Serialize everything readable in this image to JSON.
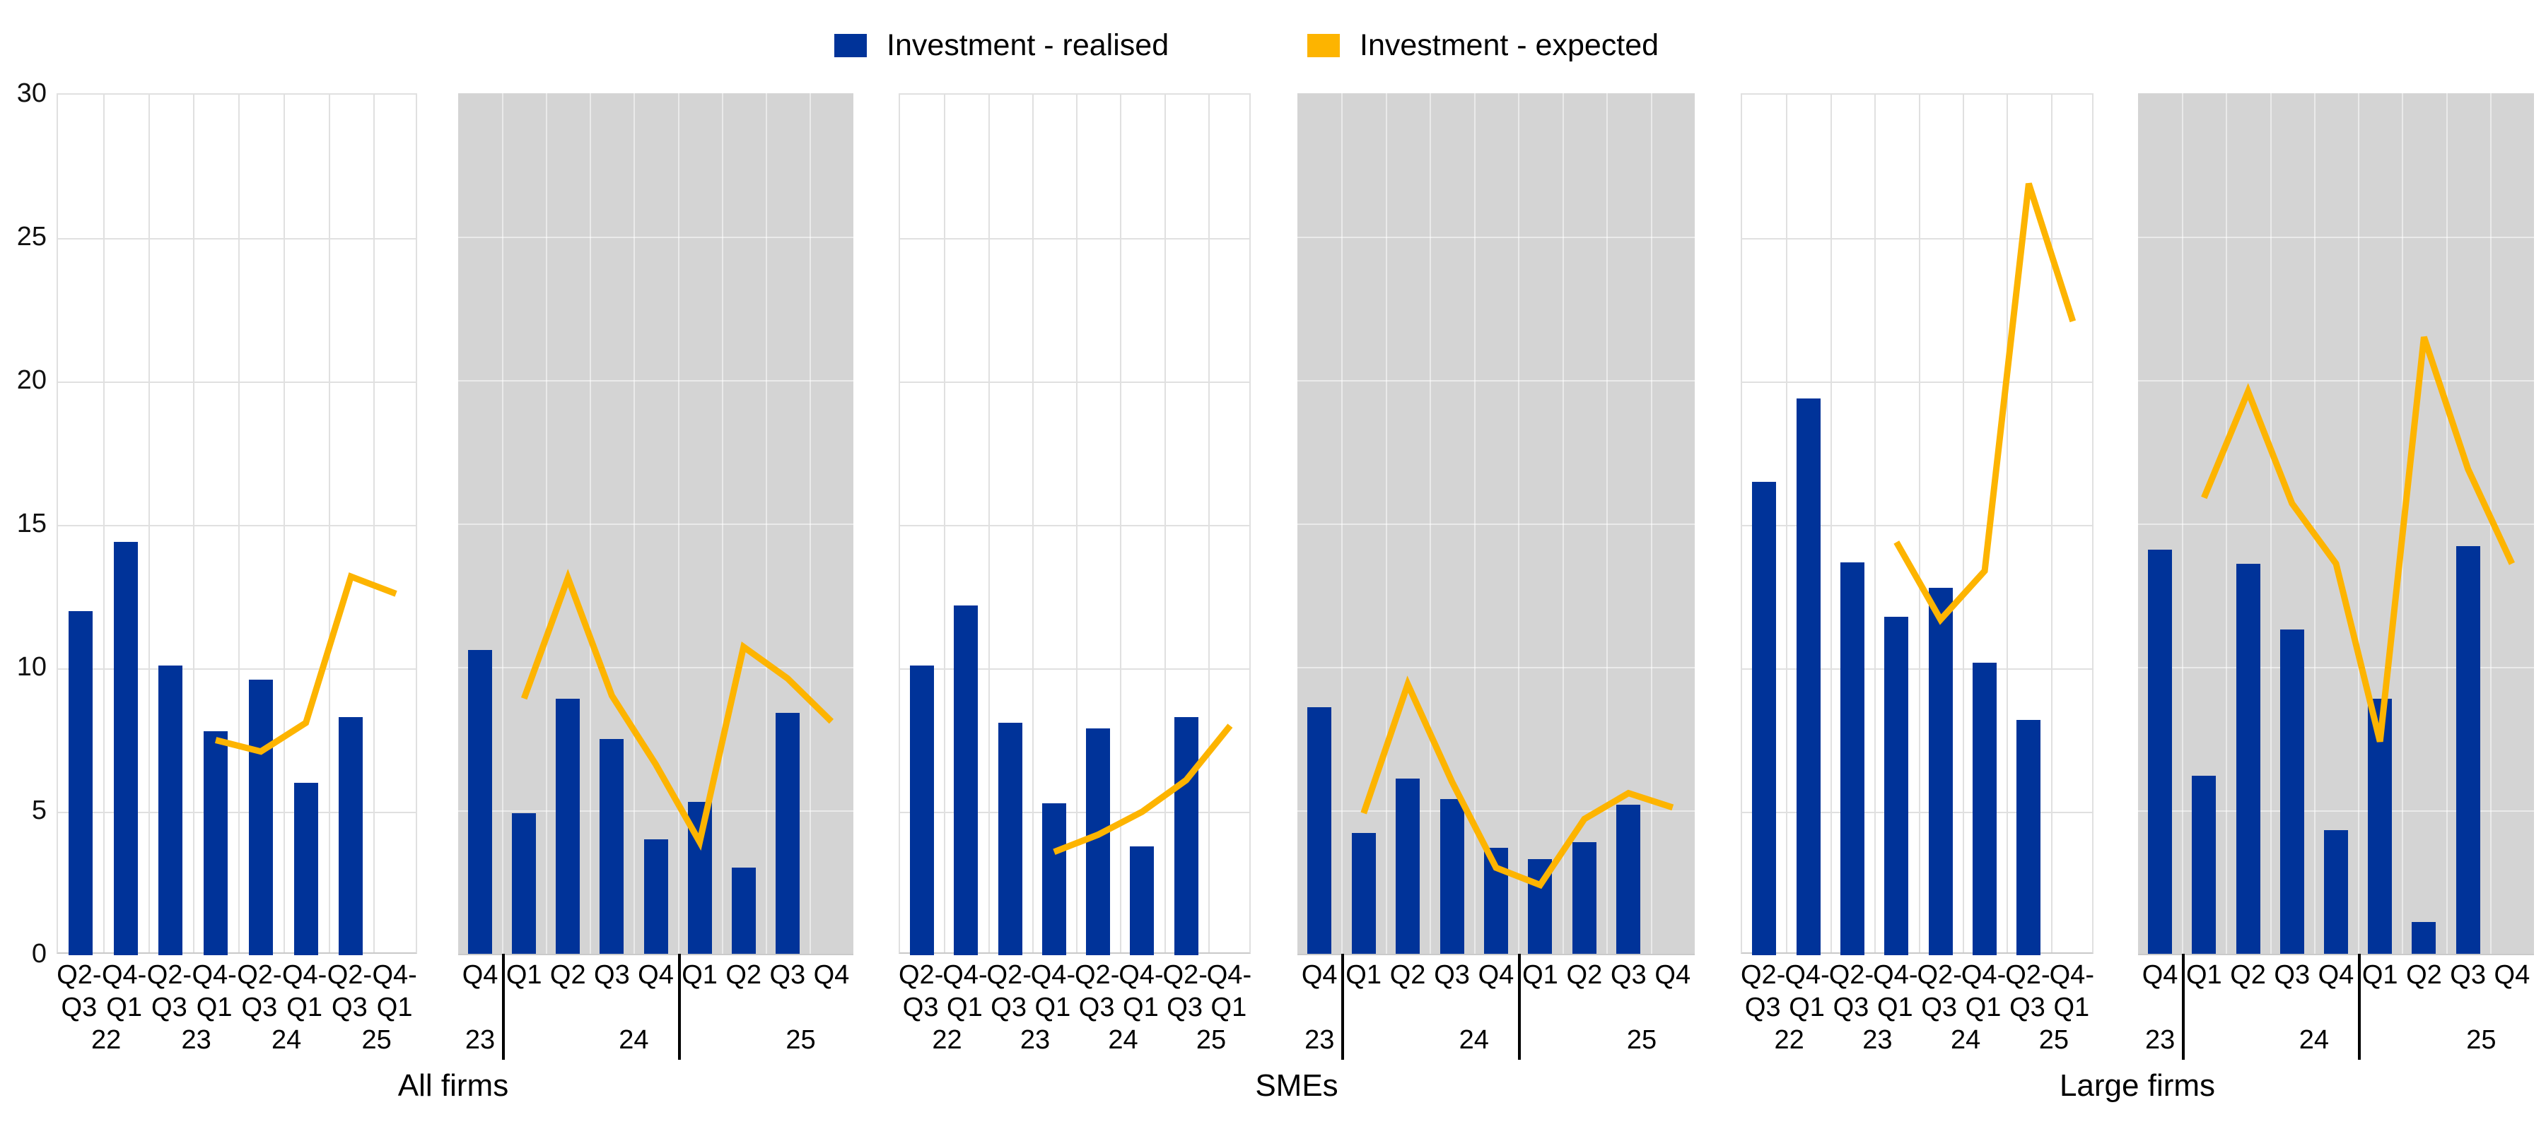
{
  "legend": {
    "items": [
      {
        "label": "Investment - realised",
        "color": "#003399"
      },
      {
        "label": "Investment - expected",
        "color": "#FDB400"
      }
    ]
  },
  "y_axis": {
    "min": 0,
    "max": 30,
    "ticks": [
      30,
      25,
      20,
      15,
      10,
      5,
      0
    ]
  },
  "group_labels": [
    "All firms",
    "SMEs",
    "Large firms"
  ],
  "colors": {
    "bar": "#003399",
    "line": "#FDB400",
    "panel_gray": "#D4D4D4",
    "grid_on_white": "#E0E0E0",
    "grid_on_gray": "rgba(255,255,255,0.5)",
    "axis_line": "#C9C9C9"
  },
  "chart_data": [
    {
      "id": "all-firms-semiannual",
      "group": "All firms",
      "type": "bar",
      "background": "white",
      "slots": 8,
      "x_labels_line1": [
        "Q2-",
        "Q4-",
        "Q2-",
        "Q4-",
        "Q2-",
        "Q4-",
        "Q2-",
        "Q4-"
      ],
      "x_labels_line2": [
        "Q3",
        "Q1",
        "Q3",
        "Q1",
        "Q3",
        "Q1",
        "Q3",
        "Q1"
      ],
      "years": [
        {
          "label": "22",
          "slot": 0.6
        },
        {
          "label": "23",
          "slot": 2.6
        },
        {
          "label": "24",
          "slot": 4.6
        },
        {
          "label": "25",
          "slot": 6.6
        }
      ],
      "separators": [],
      "series": {
        "realised": [
          12.0,
          14.4,
          10.1,
          7.8,
          9.6,
          6.0,
          8.3,
          null
        ],
        "expected": [
          null,
          null,
          null,
          7.5,
          7.1,
          8.1,
          13.2,
          12.6
        ]
      }
    },
    {
      "id": "all-firms-quarterly",
      "group": "All firms",
      "type": "bar",
      "background": "gray",
      "slots": 9,
      "x_labels_line1": [
        "Q4",
        "Q1",
        "Q2",
        "Q3",
        "Q4",
        "Q1",
        "Q2",
        "Q3",
        "Q4"
      ],
      "x_labels_line2": [],
      "years": [
        {
          "label": "23",
          "slot": 0
        },
        {
          "label": "24",
          "slot": 3.5
        },
        {
          "label": "25",
          "slot": 7.3
        }
      ],
      "separators": [
        1,
        5
      ],
      "series": {
        "realised": [
          10.6,
          4.9,
          8.9,
          7.5,
          4.0,
          5.3,
          3.0,
          8.4,
          null
        ],
        "expected": [
          null,
          8.9,
          13.1,
          9.0,
          6.6,
          3.9,
          10.7,
          9.6,
          8.1
        ]
      }
    },
    {
      "id": "smes-semiannual",
      "group": "SMEs",
      "type": "bar",
      "background": "white",
      "slots": 8,
      "x_labels_line1": [
        "Q2-",
        "Q4-",
        "Q2-",
        "Q4-",
        "Q2-",
        "Q4-",
        "Q2-",
        "Q4-"
      ],
      "x_labels_line2": [
        "Q3",
        "Q1",
        "Q3",
        "Q1",
        "Q3",
        "Q1",
        "Q3",
        "Q1"
      ],
      "years": [
        {
          "label": "22",
          "slot": 0.6
        },
        {
          "label": "23",
          "slot": 2.6
        },
        {
          "label": "24",
          "slot": 4.6
        },
        {
          "label": "25",
          "slot": 6.6
        }
      ],
      "separators": [],
      "series": {
        "realised": [
          10.1,
          12.2,
          8.1,
          5.3,
          7.9,
          3.8,
          8.3,
          null
        ],
        "expected": [
          null,
          null,
          null,
          3.6,
          4.2,
          5.0,
          6.1,
          8.0
        ]
      }
    },
    {
      "id": "smes-quarterly",
      "group": "SMEs",
      "type": "bar",
      "background": "gray",
      "slots": 9,
      "x_labels_line1": [
        "Q4",
        "Q1",
        "Q2",
        "Q3",
        "Q4",
        "Q1",
        "Q2",
        "Q3",
        "Q4"
      ],
      "x_labels_line2": [],
      "years": [
        {
          "label": "23",
          "slot": 0
        },
        {
          "label": "24",
          "slot": 3.5
        },
        {
          "label": "25",
          "slot": 7.3
        }
      ],
      "separators": [
        1,
        5
      ],
      "series": {
        "realised": [
          8.6,
          4.2,
          6.1,
          5.4,
          3.7,
          3.3,
          3.9,
          5.2,
          null
        ],
        "expected": [
          null,
          4.9,
          9.4,
          6.0,
          3.0,
          2.4,
          4.7,
          5.6,
          5.1
        ]
      }
    },
    {
      "id": "large-firms-semiannual",
      "group": "Large firms",
      "type": "bar",
      "background": "white",
      "slots": 8,
      "x_labels_line1": [
        "Q2-",
        "Q4-",
        "Q2-",
        "Q4-",
        "Q2-",
        "Q4-",
        "Q2-",
        "Q4-"
      ],
      "x_labels_line2": [
        "Q3",
        "Q1",
        "Q3",
        "Q1",
        "Q3",
        "Q1",
        "Q3",
        "Q1"
      ],
      "years": [
        {
          "label": "22",
          "slot": 0.6
        },
        {
          "label": "23",
          "slot": 2.6
        },
        {
          "label": "24",
          "slot": 4.6
        },
        {
          "label": "25",
          "slot": 6.6
        }
      ],
      "separators": [],
      "series": {
        "realised": [
          16.5,
          19.4,
          13.7,
          11.8,
          12.8,
          10.2,
          8.2,
          null
        ],
        "expected": [
          null,
          null,
          null,
          14.4,
          11.7,
          13.4,
          26.9,
          22.1
        ]
      }
    },
    {
      "id": "large-firms-quarterly",
      "group": "Large firms",
      "type": "bar",
      "background": "gray",
      "slots": 9,
      "x_labels_line1": [
        "Q4",
        "Q1",
        "Q2",
        "Q3",
        "Q4",
        "Q1",
        "Q2",
        "Q3",
        "Q4"
      ],
      "x_labels_line2": [],
      "years": [
        {
          "label": "23",
          "slot": 0
        },
        {
          "label": "24",
          "slot": 3.5
        },
        {
          "label": "25",
          "slot": 7.3
        }
      ],
      "separators": [
        1,
        5
      ],
      "series": {
        "realised": [
          14.1,
          6.2,
          13.6,
          11.3,
          4.3,
          8.9,
          1.1,
          14.2,
          null
        ],
        "expected": [
          null,
          15.9,
          19.6,
          15.7,
          13.6,
          7.4,
          21.5,
          16.9,
          13.6
        ]
      }
    }
  ]
}
